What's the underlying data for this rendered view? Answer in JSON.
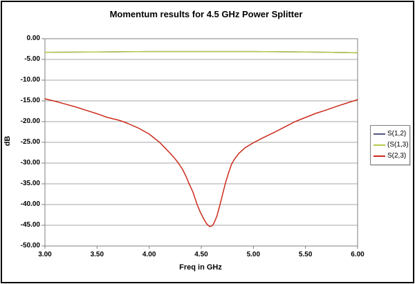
{
  "chart_title": "Momentum results for 4.5 GHz Power Splitter",
  "colors": {
    "frame_border": "#000000",
    "plot_border": "#7f7f7f",
    "gridline": "#a6a6a6",
    "background": "#ffffff",
    "text": "#000000"
  },
  "chart_data": {
    "type": "line",
    "title": "Momentum results for 4.5 GHz Power Splitter",
    "xlabel": "Freq in GHz",
    "ylabel": "dB",
    "xlim": [
      3.0,
      6.0
    ],
    "ylim": [
      -50,
      0
    ],
    "x_ticks": [
      "3.00",
      "3.50",
      "4.00",
      "4.50",
      "5.00",
      "5.50",
      "6.00"
    ],
    "y_ticks": [
      "0.00",
      "-5.00",
      "-10.00",
      "-15.00",
      "-20.00",
      "-25.00",
      "-30.00",
      "-35.00",
      "-40.00",
      "-45.00",
      "-50.00"
    ],
    "grid": "horizontal",
    "legend_position": "right",
    "series": [
      {
        "name": "S(1,2)",
        "color": "#55557e",
        "x": [
          3.0,
          3.25,
          3.5,
          3.75,
          4.0,
          4.25,
          4.5,
          4.75,
          5.0,
          5.25,
          5.5,
          5.75,
          6.0
        ],
        "y": [
          -3.3,
          -3.25,
          -3.2,
          -3.15,
          -3.1,
          -3.1,
          -3.1,
          -3.1,
          -3.1,
          -3.15,
          -3.2,
          -3.3,
          -3.4
        ]
      },
      {
        "name": "(S(1,3)",
        "color": "#b6c94a",
        "x": [
          3.0,
          3.25,
          3.5,
          3.75,
          4.0,
          4.25,
          4.5,
          4.75,
          5.0,
          5.25,
          5.5,
          5.75,
          6.0
        ],
        "y": [
          -3.3,
          -3.25,
          -3.2,
          -3.15,
          -3.1,
          -3.1,
          -3.1,
          -3.1,
          -3.1,
          -3.15,
          -3.2,
          -3.3,
          -3.4
        ]
      },
      {
        "name": "S(2,3)",
        "color": "#cb2a1a",
        "x": [
          3.0,
          3.1,
          3.2,
          3.3,
          3.4,
          3.5,
          3.6,
          3.7,
          3.75,
          3.8,
          3.9,
          4.0,
          4.1,
          4.15,
          4.2,
          4.24,
          4.28,
          4.32,
          4.35,
          4.38,
          4.42,
          4.46,
          4.49,
          4.52,
          4.55,
          4.58,
          4.6,
          4.62,
          4.65,
          4.68,
          4.71,
          4.73,
          4.76,
          4.79,
          4.82,
          4.86,
          4.92,
          5.0,
          5.1,
          5.2,
          5.3,
          5.4,
          5.5,
          5.6,
          5.7,
          5.8,
          5.9,
          6.0
        ],
        "y": [
          -14.5,
          -15.1,
          -15.8,
          -16.5,
          -17.3,
          -18.1,
          -19.0,
          -19.6,
          -20.0,
          -20.5,
          -21.6,
          -23.0,
          -25.0,
          -26.3,
          -27.6,
          -28.7,
          -30.0,
          -31.5,
          -33.0,
          -34.8,
          -37.0,
          -40.0,
          -41.8,
          -43.3,
          -44.6,
          -45.3,
          -45.2,
          -44.6,
          -42.8,
          -40.0,
          -37.0,
          -35.0,
          -32.5,
          -30.3,
          -29.0,
          -27.7,
          -26.3,
          -25.1,
          -23.8,
          -22.6,
          -21.3,
          -20.0,
          -19.0,
          -18.0,
          -17.2,
          -16.3,
          -15.5,
          -14.7
        ]
      }
    ]
  }
}
